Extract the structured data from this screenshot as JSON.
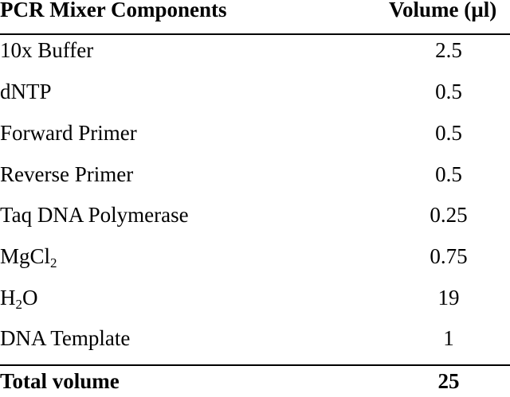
{
  "table": {
    "header": {
      "component": "PCR Mixer Components",
      "volume": "Volume (µl)"
    },
    "rows": [
      {
        "name": "10x Buffer",
        "volume": "2.5"
      },
      {
        "name": "dNTP",
        "volume": "0.5"
      },
      {
        "name": "Forward Primer",
        "volume": "0.5"
      },
      {
        "name": "Reverse Primer",
        "volume": "0.5"
      },
      {
        "name": "Taq DNA Polymerase",
        "volume": "0.25"
      },
      {
        "name_base": "MgCl",
        "name_sub": "2",
        "volume": "0.75"
      },
      {
        "name_base": "H",
        "name_sub": "2",
        "name_tail": "O",
        "volume": "19"
      },
      {
        "name": "DNA Template",
        "volume": "1"
      }
    ],
    "total": {
      "label": "Total volume",
      "volume": "25"
    }
  }
}
